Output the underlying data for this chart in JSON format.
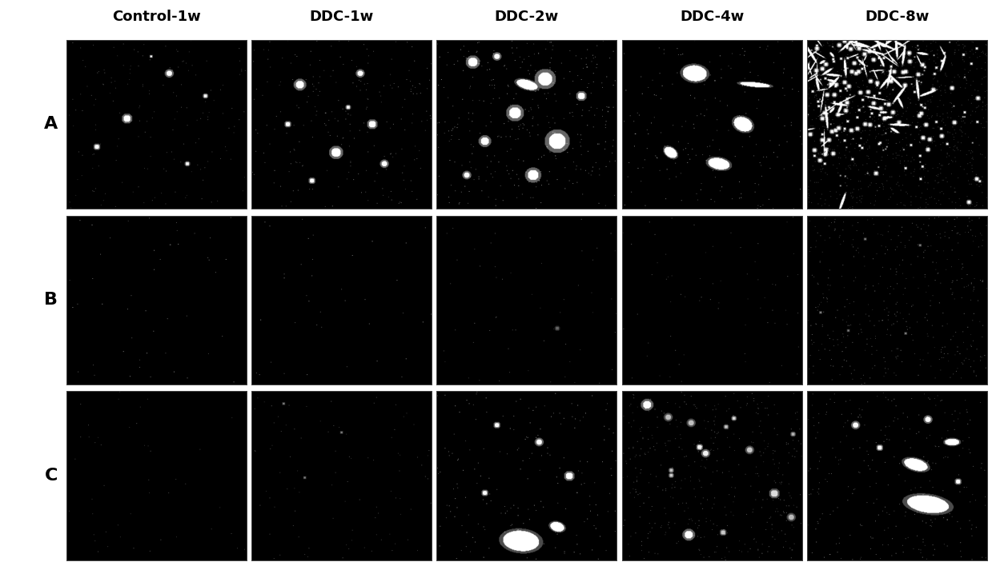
{
  "col_labels": [
    "Control-1w",
    "DDC-1w",
    "DDC-2w",
    "DDC-4w",
    "DDC-8w"
  ],
  "row_labels": [
    "A",
    "B",
    "C"
  ],
  "n_cols": 5,
  "n_rows": 3,
  "fig_bg": "#ffffff",
  "label_fontsize": 16,
  "col_fontsize": 13,
  "row_label_fontweight": "bold",
  "col_label_fontweight": "bold",
  "fig_width": 12.39,
  "fig_height": 7.08
}
